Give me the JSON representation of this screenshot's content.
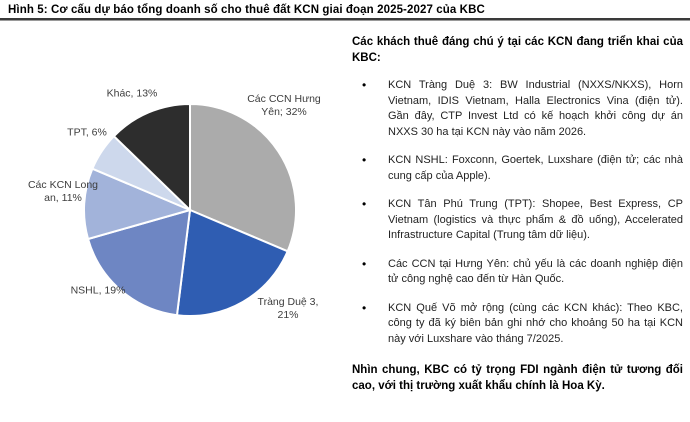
{
  "figure": {
    "title": "Hình 5: Cơ cấu dự báo tổng doanh số cho thuê đất KCN giai đoạn 2025-2027 của KBC"
  },
  "chart_data": {
    "type": "pie",
    "title": "Cơ cấu dự báo tổng doanh số cho thuê đất KCN giai đoạn 2025-2027 của KBC",
    "unit": "%",
    "start_angle_deg": -90,
    "direction": "clockwise",
    "legend_position": "none",
    "slices": [
      {
        "name": "Các CCN Hưng Yên",
        "value": 32,
        "color": "#ABABAB",
        "label_lines": [
          "Các CCN Hưng",
          "Yên; 32%"
        ]
      },
      {
        "name": "Tràng Duệ 3",
        "value": 21,
        "color": "#2F5DB2",
        "label_lines": [
          "Tràng Duệ 3,",
          "21%"
        ]
      },
      {
        "name": "NSHL",
        "value": 19,
        "color": "#6E86C3",
        "label_lines": [
          "NSHL, 19%"
        ]
      },
      {
        "name": "Các KCN Long an",
        "value": 11,
        "color": "#A2B3DA",
        "label_lines": [
          "Các KCN Long",
          "an, 11%"
        ]
      },
      {
        "name": "TPT",
        "value": 6,
        "color": "#CDD8EC",
        "label_lines": [
          "TPT, 6%"
        ]
      },
      {
        "name": "Khác",
        "value": 13,
        "color": "#2D2D2D",
        "label_lines": [
          "Khác, 13%"
        ]
      }
    ],
    "slice_separator_color": "#FFFFFF"
  },
  "panel": {
    "heading": "Các khách thuê đáng chú ý tại các KCN đang triển khai của KBC:",
    "bullet_glyph": "•",
    "bullets": [
      "KCN Tràng Duệ 3: BW Industrial (NXXS/NKXS), Horn Vietnam, IDIS Vietnam, Halla Electronics Vina (điện tử). Gần đây, CTP Invest Ltd có kế hoạch khởi công dự án NXXS 30 ha tại KCN này vào năm 2026.",
      "KCN NSHL: Foxconn, Goertek, Luxshare (điện tử; các nhà cung cấp của Apple).",
      "KCN Tân Phú Trung (TPT): Shopee, Best Express, CP Vietnam (logistics và thực phẩm & đồ uống), Accelerated Infrastructure Capital (Trung tâm dữ liệu).",
      "Các CCN tại Hưng Yên: chủ yếu là các doanh nghiệp điện tử công nghệ cao đến từ Hàn Quốc.",
      "KCN Quế Võ mở rộng (cùng các KCN khác): Theo KBC, công ty đã ký biên bản ghi nhớ cho khoảng 50 ha tại KCN này với Luxshare vào tháng 7/2025."
    ],
    "closing": "Nhìn chung, KBC có tỷ trọng FDI ngành điện tử tương đối cao, với thị trường xuất khẩu chính là Hoa Kỳ."
  }
}
